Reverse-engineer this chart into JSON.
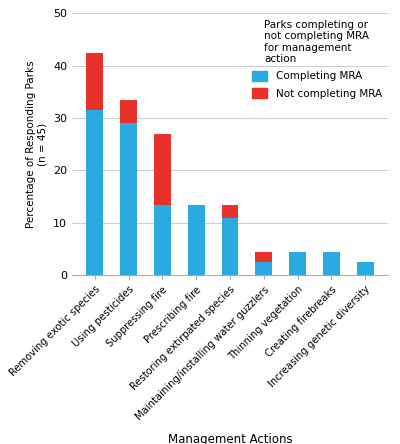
{
  "categories": [
    "Removing exotic species",
    "Using pesticides",
    "Suppressing fire",
    "Prescribing fire",
    "Restoring extirpated species",
    "Maintaining/installing water guzzlers",
    "Thinning vegetation",
    "Creating firebreaks",
    "Increasing genetic diversity"
  ],
  "completing_mra": [
    31.5,
    29.0,
    13.5,
    13.5,
    11.0,
    2.5,
    4.5,
    4.5,
    2.5
  ],
  "not_completing_mra": [
    11.0,
    4.5,
    13.5,
    0.0,
    2.5,
    2.0,
    0.0,
    0.0,
    0.0
  ],
  "color_completing": "#29ABE2",
  "color_not_completing": "#E8312A",
  "ylabel": "Percentage of Responding Parks\n(n = 45)",
  "xlabel": "Management Actions",
  "ylim": [
    0,
    50
  ],
  "yticks": [
    0,
    10,
    20,
    30,
    40,
    50
  ],
  "legend_title": "Parks completing or\nnot completing MRA\nfor management\naction",
  "legend_completing": "Completing MRA",
  "legend_not_completing": "Not completing MRA",
  "background_color": "#ffffff",
  "bar_width": 0.5
}
